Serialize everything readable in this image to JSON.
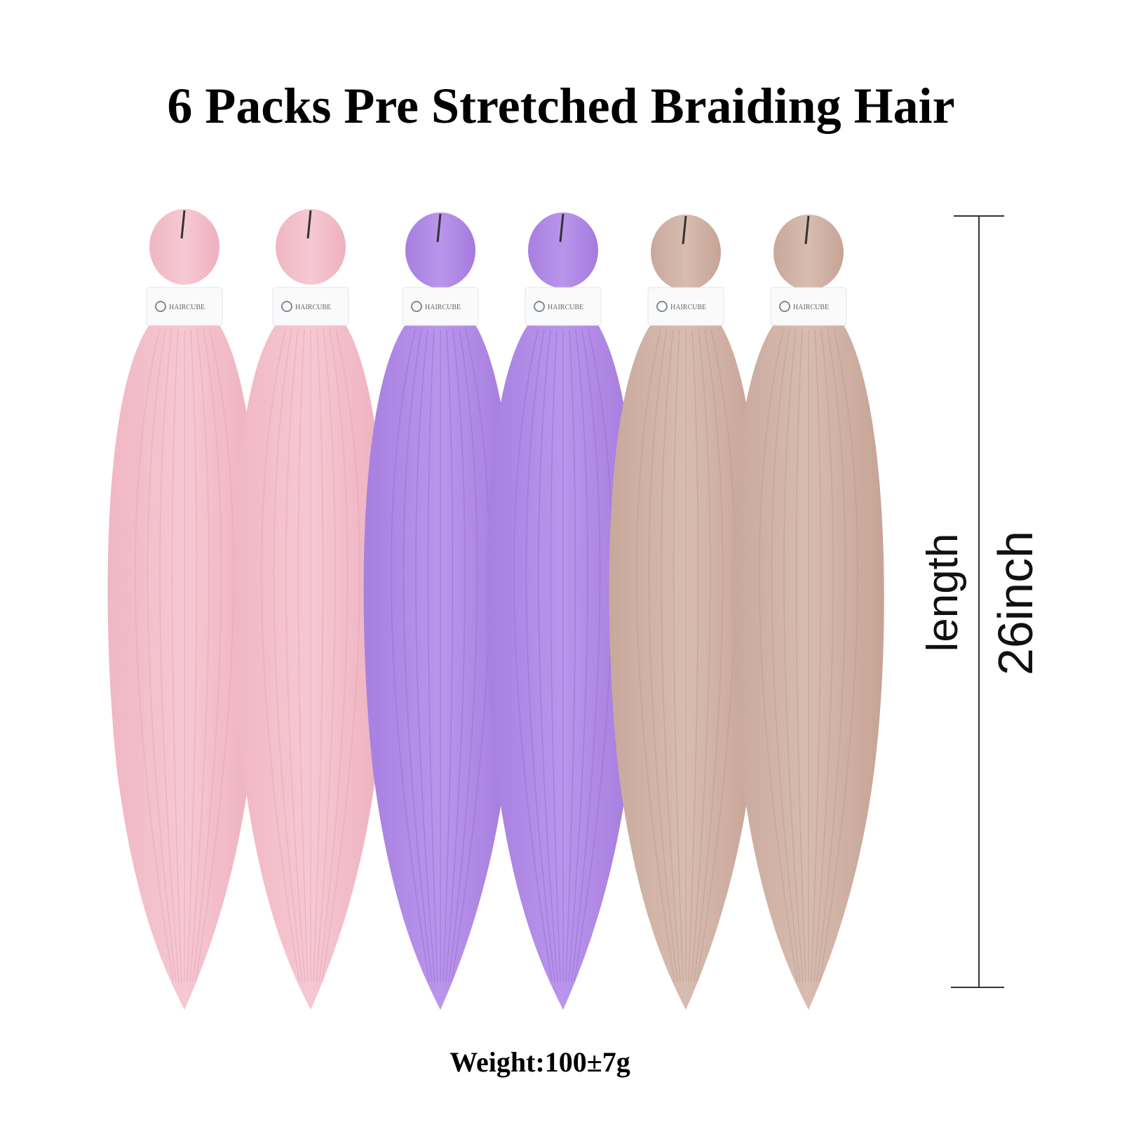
{
  "header": {
    "title": "6 Packs Pre Stretched Braiding Hair"
  },
  "product": {
    "brand": "HAIRCUBE",
    "length_label": "length",
    "length_value": "26inch",
    "weight": "Weight:100±7g"
  }
}
